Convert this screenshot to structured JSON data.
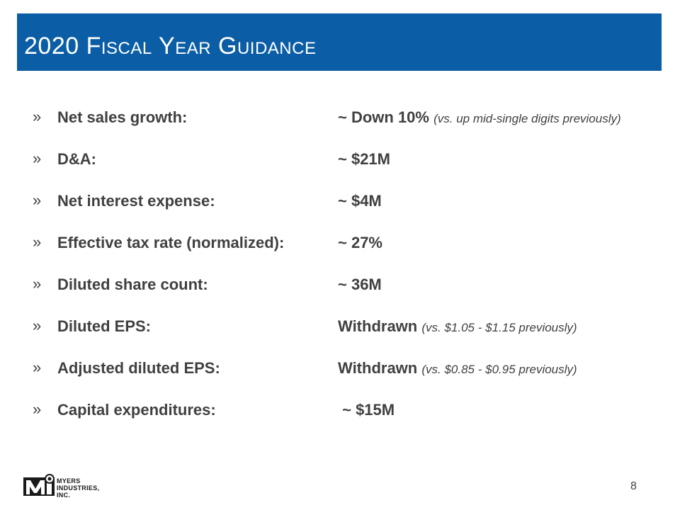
{
  "slide": {
    "title": "2020 Fiscal Year Guidance",
    "page_number": "8"
  },
  "items": [
    {
      "bullet": "»",
      "label": "Net sales growth:",
      "value": "~ Down 10%",
      "note": "(vs. up mid-single digits previously)"
    },
    {
      "bullet": "»",
      "label": "D&A:",
      "value": "~ $21M",
      "note": ""
    },
    {
      "bullet": "»",
      "label": "Net interest expense:",
      "value": "~ $4M",
      "note": ""
    },
    {
      "bullet": "»",
      "label": "Effective tax rate (normalized):",
      "value": "~ 27%",
      "note": ""
    },
    {
      "bullet": "»",
      "label": "Diluted share count:",
      "value": "~ 36M",
      "note": ""
    },
    {
      "bullet": "»",
      "label": "Diluted EPS:",
      "value": "Withdrawn",
      "note": "(vs. $1.05 - $1.15 previously)"
    },
    {
      "bullet": "»",
      "label": "Adjusted diluted EPS:",
      "value": "Withdrawn",
      "note": "(vs. $0.85 - $0.95 previously)"
    },
    {
      "bullet": "»",
      "label": "Capital expenditures:",
      "value": " ~ $15M",
      "note": ""
    }
  ],
  "logo": {
    "line1": "MYERS",
    "line2": "INDUSTRIES,",
    "line3": "INC.",
    "color": "#1a1a1a"
  },
  "colors": {
    "title_bar": "#0b5ea5",
    "text": "#404040"
  }
}
